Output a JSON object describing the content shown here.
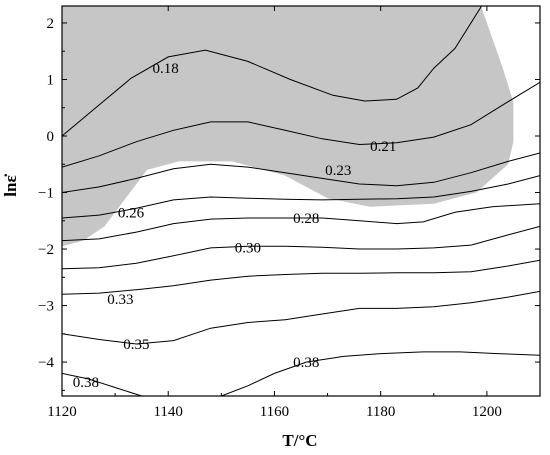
{
  "chart_data": {
    "type": "contour",
    "xlabel": "T/°C",
    "ylabel": "lnε̇",
    "xlim": [
      1120,
      1210
    ],
    "ylim": [
      -4.6,
      2.3
    ],
    "xticks": [
      1120,
      1140,
      1160,
      1180,
      1200
    ],
    "yticks": [
      -4,
      -3,
      -2,
      -1,
      0,
      1,
      2
    ],
    "xtick_labels": [
      "1120",
      "1140",
      "1160",
      "1180",
      "1200"
    ],
    "ytick_labels": [
      "−4",
      "−3",
      "−2",
      "−1",
      "0",
      "1",
      "2"
    ],
    "shaded_region": {
      "color": "#c6c6c6",
      "points": [
        [
          1124,
          2.3
        ],
        [
          1198.9,
          2.3
        ],
        [
          1203,
          1.2
        ],
        [
          1205,
          0.6
        ],
        [
          1205,
          -0.1
        ],
        [
          1204,
          -0.5
        ],
        [
          1198,
          -1.0
        ],
        [
          1190,
          -1.2
        ],
        [
          1178,
          -1.25
        ],
        [
          1170,
          -1.1
        ],
        [
          1162,
          -0.7
        ],
        [
          1152,
          -0.45
        ],
        [
          1142,
          -0.45
        ],
        [
          1136,
          -0.6
        ],
        [
          1132,
          -1.1
        ],
        [
          1128,
          -1.6
        ],
        [
          1124,
          -1.85
        ],
        [
          1120,
          -1.95
        ],
        [
          1120,
          2.3
        ]
      ]
    },
    "contours": [
      {
        "level": "0.18",
        "points": [
          [
            1120,
            0.0
          ],
          [
            1127,
            0.55
          ],
          [
            1133,
            1.02
          ],
          [
            1140,
            1.4
          ],
          [
            1147,
            1.52
          ],
          [
            1155,
            1.32
          ],
          [
            1163,
            1.0
          ],
          [
            1171,
            0.72
          ],
          [
            1177,
            0.62
          ],
          [
            1183,
            0.65
          ],
          [
            1187,
            0.85
          ],
          [
            1190,
            1.2
          ],
          [
            1194,
            1.55
          ],
          [
            1199,
            2.3
          ]
        ],
        "label_at": [
          1139.5,
          1.2
        ]
      },
      {
        "level": "0.21",
        "points": [
          [
            1120,
            -0.55
          ],
          [
            1127,
            -0.35
          ],
          [
            1134,
            -0.1
          ],
          [
            1141,
            0.1
          ],
          [
            1148,
            0.25
          ],
          [
            1155,
            0.25
          ],
          [
            1162,
            0.1
          ],
          [
            1169,
            -0.05
          ],
          [
            1176,
            -0.15
          ],
          [
            1183,
            -0.12
          ],
          [
            1190,
            -0.02
          ],
          [
            1197,
            0.2
          ],
          [
            1203,
            0.55
          ],
          [
            1210,
            0.95
          ]
        ],
        "label_at": [
          1180.5,
          -0.18
        ]
      },
      {
        "level": "0.23",
        "points": [
          [
            1120,
            -1.0
          ],
          [
            1127,
            -0.9
          ],
          [
            1134,
            -0.75
          ],
          [
            1141,
            -0.58
          ],
          [
            1148,
            -0.5
          ],
          [
            1155,
            -0.55
          ],
          [
            1162,
            -0.65
          ],
          [
            1169,
            -0.75
          ],
          [
            1176,
            -0.85
          ],
          [
            1183,
            -0.88
          ],
          [
            1190,
            -0.82
          ],
          [
            1197,
            -0.65
          ],
          [
            1204,
            -0.45
          ],
          [
            1210,
            -0.3
          ]
        ],
        "label_at": [
          1172,
          -0.6
        ]
      },
      {
        "level": "0.26",
        "points": [
          [
            1120,
            -1.45
          ],
          [
            1127,
            -1.4
          ],
          [
            1134,
            -1.28
          ],
          [
            1141,
            -1.13
          ],
          [
            1148,
            -1.08
          ],
          [
            1155,
            -1.1
          ],
          [
            1162,
            -1.12
          ],
          [
            1169,
            -1.13
          ],
          [
            1176,
            -1.12
          ],
          [
            1183,
            -1.11
          ],
          [
            1190,
            -1.08
          ],
          [
            1197,
            -0.98
          ],
          [
            1204,
            -0.85
          ],
          [
            1210,
            -0.7
          ]
        ],
        "label_at": [
          1133,
          -1.35
        ]
      },
      {
        "level": "0.28",
        "points": [
          [
            1120,
            -1.85
          ],
          [
            1127,
            -1.82
          ],
          [
            1134,
            -1.7
          ],
          [
            1141,
            -1.55
          ],
          [
            1148,
            -1.47
          ],
          [
            1155,
            -1.45
          ],
          [
            1162,
            -1.45
          ],
          [
            1169,
            -1.45
          ],
          [
            1176,
            -1.5
          ],
          [
            1183,
            -1.55
          ],
          [
            1188,
            -1.52
          ],
          [
            1194,
            -1.35
          ],
          [
            1201,
            -1.25
          ],
          [
            1210,
            -1.2
          ]
        ],
        "label_at": [
          1166,
          -1.45
        ]
      },
      {
        "level": "0.30",
        "points": [
          [
            1120,
            -2.35
          ],
          [
            1127,
            -2.33
          ],
          [
            1134,
            -2.25
          ],
          [
            1141,
            -2.12
          ],
          [
            1148,
            -1.98
          ],
          [
            1155,
            -1.95
          ],
          [
            1162,
            -1.95
          ],
          [
            1169,
            -1.97
          ],
          [
            1176,
            -2.0
          ],
          [
            1183,
            -2.0
          ],
          [
            1190,
            -1.98
          ],
          [
            1197,
            -1.93
          ],
          [
            1204,
            -1.75
          ],
          [
            1210,
            -1.6
          ]
        ],
        "label_at": [
          1155,
          -1.97
        ]
      },
      {
        "level": "0.33",
        "points": [
          [
            1120,
            -2.8
          ],
          [
            1127,
            -2.78
          ],
          [
            1134,
            -2.72
          ],
          [
            1141,
            -2.65
          ],
          [
            1148,
            -2.55
          ],
          [
            1155,
            -2.48
          ],
          [
            1162,
            -2.45
          ],
          [
            1169,
            -2.43
          ],
          [
            1176,
            -2.43
          ],
          [
            1183,
            -2.42
          ],
          [
            1190,
            -2.42
          ],
          [
            1197,
            -2.4
          ],
          [
            1204,
            -2.3
          ],
          [
            1210,
            -2.2
          ]
        ],
        "label_at": [
          1131,
          -2.88
        ]
      },
      {
        "level": "0.35",
        "points": [
          [
            1120,
            -3.5
          ],
          [
            1127,
            -3.6
          ],
          [
            1134,
            -3.68
          ],
          [
            1141,
            -3.62
          ],
          [
            1148,
            -3.4
          ],
          [
            1155,
            -3.3
          ],
          [
            1162,
            -3.25
          ],
          [
            1169,
            -3.15
          ],
          [
            1176,
            -3.05
          ],
          [
            1183,
            -3.05
          ],
          [
            1190,
            -3.02
          ],
          [
            1197,
            -2.95
          ],
          [
            1204,
            -2.85
          ],
          [
            1210,
            -2.75
          ]
        ],
        "label_at": [
          1134,
          -3.68
        ]
      },
      {
        "level": "0.38",
        "points": [
          [
            1120,
            -4.2
          ],
          [
            1125,
            -4.3
          ],
          [
            1130,
            -4.45
          ],
          [
            1135,
            -4.6
          ]
        ],
        "label_at": [
          1124.5,
          -4.35
        ]
      },
      {
        "level": "0.38",
        "points": [
          [
            1150,
            -4.6
          ],
          [
            1155,
            -4.42
          ],
          [
            1160,
            -4.2
          ],
          [
            1166,
            -4.0
          ],
          [
            1173,
            -3.9
          ],
          [
            1180,
            -3.85
          ],
          [
            1188,
            -3.82
          ],
          [
            1195,
            -3.82
          ],
          [
            1202,
            -3.85
          ],
          [
            1210,
            -3.88
          ]
        ],
        "label_at": [
          1166,
          -4.0
        ]
      }
    ]
  }
}
